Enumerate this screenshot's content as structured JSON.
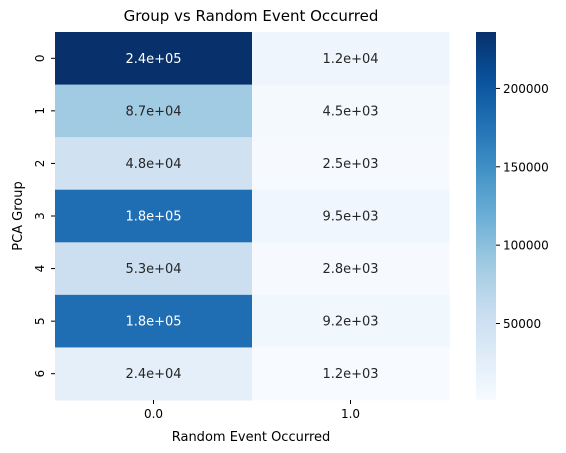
{
  "chart_data": {
    "type": "heatmap",
    "title": "Group vs Random Event Occurred",
    "xlabel": "Random Event Occurred",
    "ylabel": "PCA Group",
    "x_categories": [
      "0.0",
      "1.0"
    ],
    "y_categories": [
      "0",
      "1",
      "2",
      "3",
      "4",
      "5",
      "6"
    ],
    "values": [
      [
        236000,
        12000
      ],
      [
        87000,
        4500
      ],
      [
        48000,
        2500
      ],
      [
        180000,
        9500
      ],
      [
        53000,
        2800
      ],
      [
        180000,
        9200
      ],
      [
        24000,
        1200
      ]
    ],
    "cell_labels": [
      [
        "2.4e+05",
        "1.2e+04"
      ],
      [
        "8.7e+04",
        "4.5e+03"
      ],
      [
        "4.8e+04",
        "2.5e+03"
      ],
      [
        "1.8e+05",
        "9.5e+03"
      ],
      [
        "5.3e+04",
        "2.8e+03"
      ],
      [
        "1.8e+05",
        "9.2e+03"
      ],
      [
        "2.4e+04",
        "1.2e+03"
      ]
    ],
    "colormap": "Blues",
    "colorbar": {
      "range": [
        1200,
        236000
      ],
      "ticks": [
        50000,
        100000,
        150000,
        200000
      ],
      "tick_labels": [
        "50000",
        "100000",
        "150000",
        "200000"
      ]
    },
    "colors": {
      "low": "#f7fbff",
      "high": "#08306b",
      "text_dark": "#262626",
      "text_light": "#ffffff"
    }
  }
}
